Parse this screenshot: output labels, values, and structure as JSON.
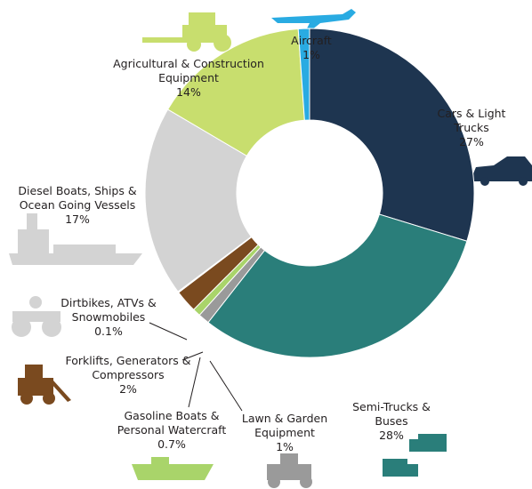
{
  "chart_data": {
    "type": "donut",
    "categories": [
      "Cars & Light Trucks",
      "Semi-Trucks & Buses",
      "Lawn & Garden Equipment",
      "Gasoline Boats & Personal Watercraft",
      "Forklifts, Generators & Compressors",
      "Dirtbikes, ATVs & Snowmobiles",
      "Diesel Boats, Ships & Ocean Going Vessels",
      "Agricultural & Construction Equipment",
      "Aircraft"
    ],
    "values": [
      27,
      28,
      1,
      0.7,
      2,
      0.1,
      17,
      14,
      1
    ],
    "value_labels": [
      "27%",
      "28%",
      "1%",
      "0.7%",
      "2%",
      "0.1%",
      "17%",
      "14%",
      "1%"
    ],
    "colors": [
      "#1e3550",
      "#2a7e7a",
      "#9a9a9a",
      "#a9d46a",
      "#7a4a1f",
      "#f4f4f4",
      "#d3d3d3",
      "#c8de6e",
      "#29abe2"
    ]
  }
}
